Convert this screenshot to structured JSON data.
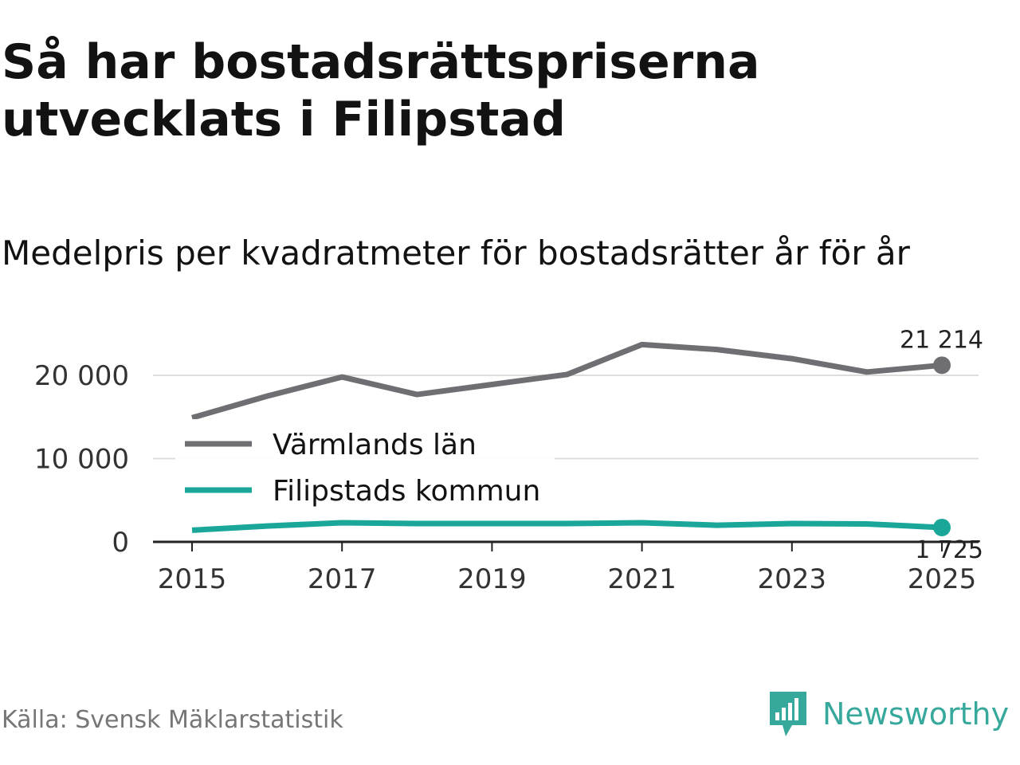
{
  "title": "Så har bostadsrättspriserna utvecklats i Filipstad",
  "subtitle": "Medelpris per kvadratmeter för bostadsrätter år för år",
  "source": "Källa: Svensk Mäklarstatistik",
  "brand": {
    "name": "Newsworthy",
    "icon": "newsworthy-logo-icon"
  },
  "colors": {
    "lan": "#6f6e73",
    "kommun": "#1aa79a",
    "grid": "#dddddd",
    "axis": "#222222"
  },
  "chart_data": {
    "type": "line",
    "title": "Medelpris per kvadratmeter för bostadsrätter år för år",
    "x": [
      2015,
      2016,
      2017,
      2018,
      2019,
      2020,
      2021,
      2022,
      2023,
      2024,
      2025
    ],
    "xticks": [
      2015,
      2017,
      2019,
      2021,
      2023,
      2025
    ],
    "xtick_labels": [
      "2015",
      "2017",
      "2019",
      "2021",
      "2023",
      "2025"
    ],
    "yticks": [
      0,
      10000,
      20000
    ],
    "ytick_labels": [
      "0",
      "10 000",
      "20 000"
    ],
    "ylim": [
      0,
      25000
    ],
    "xlim": [
      2015,
      2025
    ],
    "grid": true,
    "legend_position": "center-left",
    "series": [
      {
        "name": "Värmlands län",
        "color": "#6f6e73",
        "values": [
          14900,
          17500,
          19800,
          17700,
          18900,
          20100,
          23700,
          23100,
          22000,
          20400,
          21214
        ],
        "end_label": "21 214"
      },
      {
        "name": "Filipstads kommun",
        "color": "#1aa79a",
        "values": [
          1400,
          1900,
          2300,
          2200,
          2200,
          2200,
          2300,
          2000,
          2200,
          2150,
          1725
        ],
        "end_label": "1 725"
      }
    ]
  }
}
